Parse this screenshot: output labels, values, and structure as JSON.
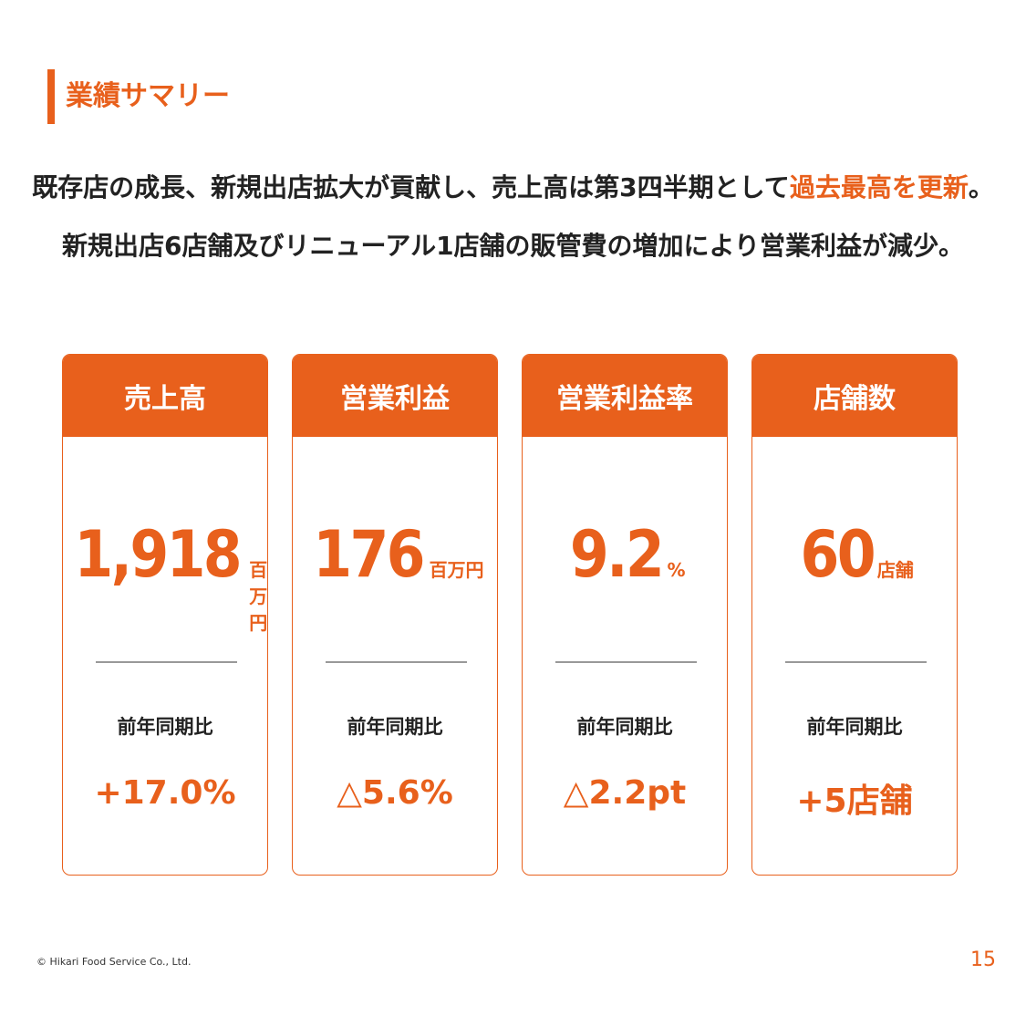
{
  "header": {
    "title": "業績サマリー"
  },
  "headline": {
    "line1": {
      "text": "既存店の成長、新規出店拡大が貢献し、売上高は第3四半期として",
      "highlight": "過去最高を更新",
      "end": "。"
    },
    "line2": "新規出店6店舗及びリニューアル1店舗の販管費の増加により営業利益が減少。"
  },
  "cards": [
    {
      "label": "売上高",
      "value": "1,918",
      "unit": "百万円",
      "compare_label": "前年同期比",
      "change": "+17.0%"
    },
    {
      "label": "営業利益",
      "value": "176",
      "unit": "百万円",
      "compare_label": "前年同期比",
      "change": "△5.6%"
    },
    {
      "label": "営業利益率",
      "value": "9.2",
      "unit": "%",
      "compare_label": "前年同期比",
      "change": "△2.2pt"
    },
    {
      "label": "店舗数",
      "value": "60",
      "unit": "店舗",
      "compare_label": "前年同期比",
      "change": "+5店舗"
    }
  ],
  "footer": {
    "copyright": "© Hikari Food Service Co., Ltd.",
    "page": "15"
  }
}
